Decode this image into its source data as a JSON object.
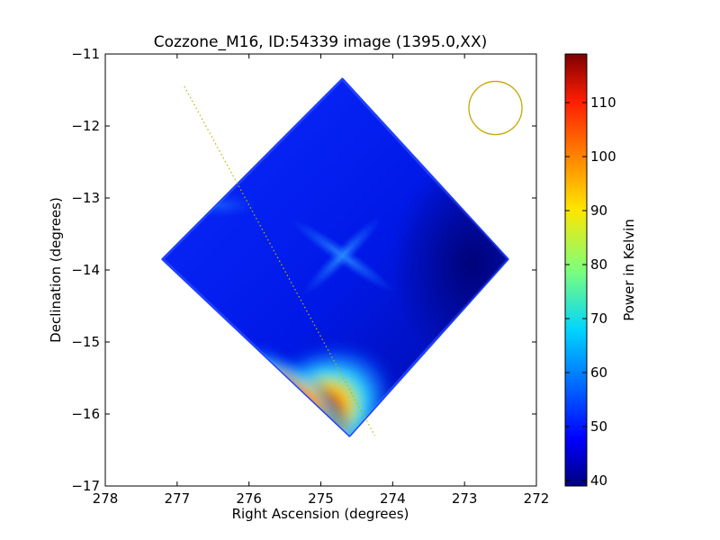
{
  "chart_data": {
    "type": "heatmap",
    "title": "Cozzone_M16, ID:54339 image (1395.0,XX)",
    "xlabel": "Right Ascension (degrees)",
    "ylabel": "Declination (degrees)",
    "xlim": [
      278,
      272
    ],
    "ylim": [
      -17,
      -11
    ],
    "x_ticks": [
      "278",
      "277",
      "276",
      "275",
      "274",
      "273",
      "272"
    ],
    "y_ticks": [
      "−11",
      "−12",
      "−13",
      "−14",
      "−15",
      "−16",
      "−17"
    ],
    "colorbar": {
      "label": "Power in Kelvin",
      "range": [
        39,
        119
      ],
      "ticks": [
        "40",
        "50",
        "60",
        "70",
        "80",
        "90",
        "100",
        "110"
      ],
      "colormap": "jet"
    },
    "image_outline_vertices": [
      [
        274.7,
        -11.35
      ],
      [
        272.4,
        -13.85
      ],
      [
        274.6,
        -16.3
      ],
      [
        277.2,
        -13.85
      ]
    ],
    "scan_line": {
      "start": [
        276.9,
        -11.45
      ],
      "end": [
        274.25,
        -16.3
      ],
      "color": "#b8b800"
    },
    "beam_circle": {
      "center": [
        272.57,
        -11.75
      ],
      "radius_deg": 0.37,
      "color": "#c8a800"
    }
  }
}
